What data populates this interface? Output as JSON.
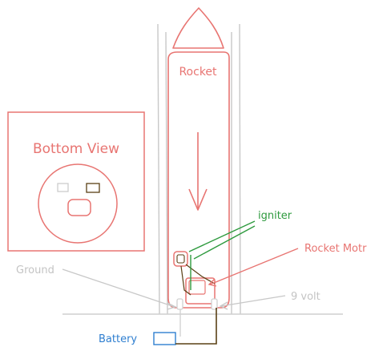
{
  "labels": {
    "rocket": "Rocket",
    "bottom_view": "Bottom View",
    "igniter": "igniter",
    "rocket_motor": "Rocket Motr",
    "ground": "Ground",
    "nine_volt": "9 volt",
    "battery": "Battery"
  },
  "colors": {
    "rocket": "#e87572",
    "igniter": "#2e9a3e",
    "ground": "#c8c8c8",
    "battery": "#2f7fd0",
    "wire": "#5a4015",
    "pad": "#d4d4d4"
  }
}
